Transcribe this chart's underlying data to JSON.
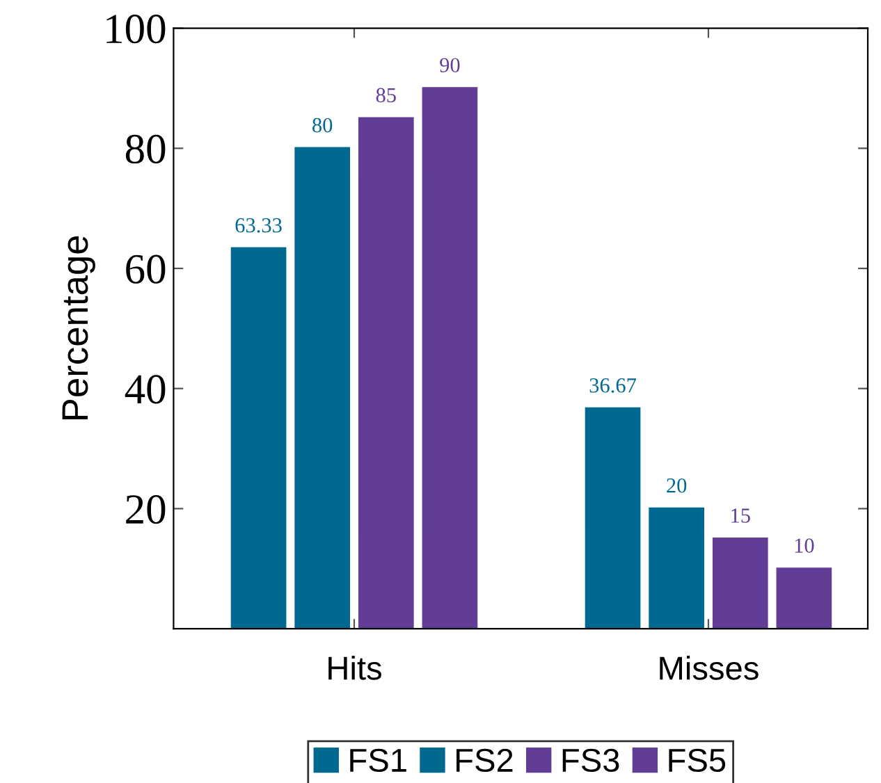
{
  "chart_data": {
    "type": "bar",
    "ylabel": "Percentage",
    "categories": [
      "Hits",
      "Misses"
    ],
    "series": [
      {
        "name": "FS1",
        "color": "#00698f",
        "values": [
          63.33,
          36.67
        ]
      },
      {
        "name": "FS2",
        "color": "#00698f",
        "values": [
          80,
          20
        ]
      },
      {
        "name": "FS3",
        "color": "#613d96",
        "values": [
          85,
          15
        ]
      },
      {
        "name": "FS5",
        "color": "#613d96",
        "values": [
          90,
          10
        ]
      }
    ],
    "ylim": [
      0,
      100
    ],
    "yticks": [
      20,
      40,
      60,
      80,
      100
    ],
    "data_labels": true,
    "grid": false,
    "legend": "bottom"
  }
}
